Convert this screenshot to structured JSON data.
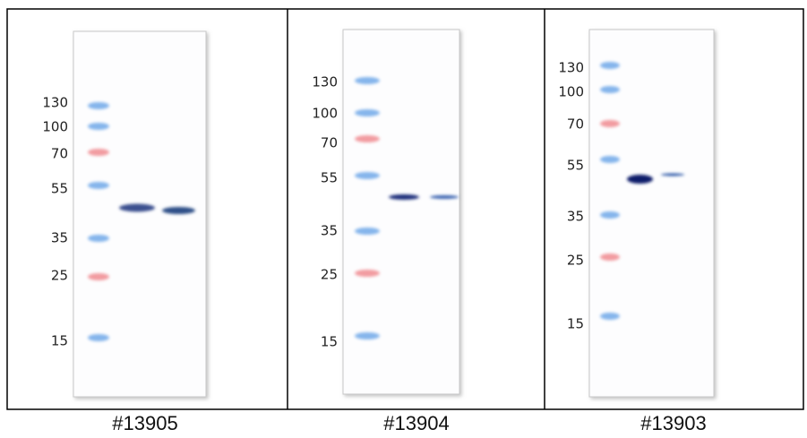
{
  "panels": [
    {
      "caption": "#13905",
      "markers": [
        130,
        100,
        70,
        55,
        35,
        25,
        15
      ]
    },
    {
      "caption": "#13904",
      "markers": [
        130,
        100,
        70,
        55,
        35,
        25,
        15
      ]
    },
    {
      "caption": "#13903",
      "markers": [
        130,
        100,
        70,
        55,
        35,
        25,
        15
      ]
    }
  ]
}
